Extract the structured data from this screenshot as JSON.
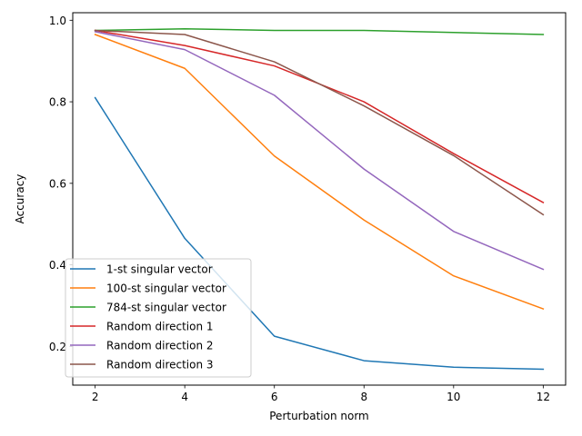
{
  "chart_data": {
    "type": "line",
    "title": "",
    "xlabel": "Perturbation norm",
    "ylabel": "Accuracy",
    "x": [
      2,
      4,
      6,
      8,
      10,
      12
    ],
    "xlim": [
      1.5,
      12.5
    ],
    "ylim": [
      0.105,
      1.0185
    ],
    "xticks": [
      2,
      4,
      6,
      8,
      10,
      12
    ],
    "yticks": [
      0.2,
      0.4,
      0.6,
      0.8,
      1.0
    ],
    "ytick_labels": [
      "0.2",
      "0.4",
      "0.6",
      "0.8",
      "1.0"
    ],
    "grid": false,
    "legend_position": "lower-left",
    "series": [
      {
        "name": "1-st singular vector",
        "color": "#1f77b4",
        "values": [
          0.81,
          0.465,
          0.225,
          0.165,
          0.149,
          0.144
        ]
      },
      {
        "name": "100-st singular vector",
        "color": "#ff7f0e",
        "values": [
          0.965,
          0.882,
          0.667,
          0.51,
          0.373,
          0.292
        ]
      },
      {
        "name": "784-st singular vector",
        "color": "#2ca02c",
        "values": [
          0.975,
          0.979,
          0.975,
          0.975,
          0.97,
          0.965
        ]
      },
      {
        "name": "Random direction 1",
        "color": "#d62728",
        "values": [
          0.975,
          0.938,
          0.888,
          0.8,
          0.673,
          0.553
        ]
      },
      {
        "name": "Random direction 2",
        "color": "#9467bd",
        "values": [
          0.972,
          0.928,
          0.816,
          0.635,
          0.482,
          0.389
        ]
      },
      {
        "name": "Random direction 3",
        "color": "#8c564b",
        "values": [
          0.975,
          0.965,
          0.898,
          0.79,
          0.668,
          0.523
        ]
      }
    ]
  }
}
